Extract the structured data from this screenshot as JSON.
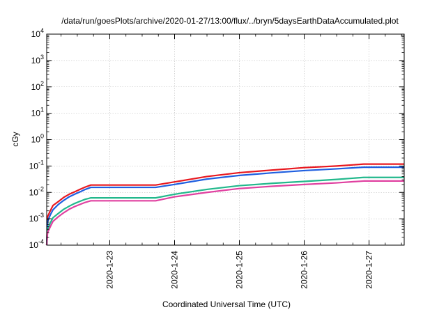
{
  "chart_data": {
    "type": "line",
    "title": "/data/run/goesPlots/archive/2020-01-27/13:00/flux/../bryn/5daysEarthDataAccumulated.plot",
    "xlabel": "Coordinated Universal Time (UTC)",
    "ylabel": "cGy",
    "y_scale": "log",
    "ylim": [
      0.0001,
      10000
    ],
    "xlim": [
      "2020-01-22 00:40",
      "2020-01-27 13:00"
    ],
    "grid": true,
    "x_ticks": [
      "2020-1-23",
      "2020-1-24",
      "2020-1-25",
      "2020-1-26",
      "2020-1-27"
    ],
    "y_ticks": [
      {
        "value": 0.0001,
        "base": "10",
        "exp": "-4"
      },
      {
        "value": 0.001,
        "base": "10",
        "exp": "-3"
      },
      {
        "value": 0.01,
        "base": "10",
        "exp": "-2"
      },
      {
        "value": 0.1,
        "base": "10",
        "exp": "-1"
      },
      {
        "value": 1,
        "base": "10",
        "exp": "0"
      },
      {
        "value": 10,
        "base": "10",
        "exp": "1"
      },
      {
        "value": 100,
        "base": "10",
        "exp": "2"
      },
      {
        "value": 1000,
        "base": "10",
        "exp": "3"
      },
      {
        "value": 10000,
        "base": "10",
        "exp": "4"
      }
    ],
    "series": [
      {
        "color": "#e8181f",
        "points": [
          [
            "2020-01-22 00:40",
            0.0001
          ],
          [
            "2020-01-22 01:00",
            0.0012
          ],
          [
            "2020-01-22 02:00",
            0.002
          ],
          [
            "2020-01-22 03:00",
            0.0032
          ],
          [
            "2020-01-22 05:00",
            0.0045
          ],
          [
            "2020-01-22 07:00",
            0.0065
          ],
          [
            "2020-01-22 09:00",
            0.0085
          ],
          [
            "2020-01-22 11:00",
            0.0105
          ],
          [
            "2020-01-22 13:00",
            0.013
          ],
          [
            "2020-01-22 15:00",
            0.016
          ],
          [
            "2020-01-22 17:00",
            0.019
          ],
          [
            "2020-01-22 20:00",
            0.019
          ],
          [
            "2020-01-23 17:00",
            0.019
          ],
          [
            "2020-01-24 00:00",
            0.025
          ],
          [
            "2020-01-24 12:00",
            0.04
          ],
          [
            "2020-01-25 00:00",
            0.056
          ],
          [
            "2020-01-25 12:00",
            0.07
          ],
          [
            "2020-01-26 00:00",
            0.087
          ],
          [
            "2020-01-26 12:00",
            0.1
          ],
          [
            "2020-01-26 22:00",
            0.118
          ],
          [
            "2020-01-27 13:00",
            0.118
          ]
        ]
      },
      {
        "color": "#1f5fe0",
        "points": [
          [
            "2020-01-22 00:40",
            0.0001
          ],
          [
            "2020-01-22 01:00",
            0.0008
          ],
          [
            "2020-01-22 02:00",
            0.0014
          ],
          [
            "2020-01-22 03:00",
            0.0022
          ],
          [
            "2020-01-22 05:00",
            0.0035
          ],
          [
            "2020-01-22 07:00",
            0.005
          ],
          [
            "2020-01-22 09:00",
            0.0068
          ],
          [
            "2020-01-22 11:00",
            0.0085
          ],
          [
            "2020-01-22 13:00",
            0.0105
          ],
          [
            "2020-01-22 15:00",
            0.013
          ],
          [
            "2020-01-22 17:00",
            0.0155
          ],
          [
            "2020-01-22 20:00",
            0.0155
          ],
          [
            "2020-01-23 17:00",
            0.0155
          ],
          [
            "2020-01-24 00:00",
            0.02
          ],
          [
            "2020-01-24 12:00",
            0.032
          ],
          [
            "2020-01-25 00:00",
            0.044
          ],
          [
            "2020-01-25 12:00",
            0.055
          ],
          [
            "2020-01-26 00:00",
            0.067
          ],
          [
            "2020-01-26 12:00",
            0.078
          ],
          [
            "2020-01-26 22:00",
            0.09
          ],
          [
            "2020-01-27 13:00",
            0.09
          ]
        ]
      },
      {
        "color": "#22b88c",
        "points": [
          [
            "2020-01-22 00:40",
            0.0001
          ],
          [
            "2020-01-22 01:00",
            0.0004
          ],
          [
            "2020-01-22 02:00",
            0.0007
          ],
          [
            "2020-01-22 03:00",
            0.0011
          ],
          [
            "2020-01-22 05:00",
            0.0016
          ],
          [
            "2020-01-22 07:00",
            0.0023
          ],
          [
            "2020-01-22 09:00",
            0.003
          ],
          [
            "2020-01-22 11:00",
            0.0038
          ],
          [
            "2020-01-22 13:00",
            0.0046
          ],
          [
            "2020-01-22 15:00",
            0.0055
          ],
          [
            "2020-01-22 17:00",
            0.0062
          ],
          [
            "2020-01-22 20:00",
            0.0062
          ],
          [
            "2020-01-23 17:00",
            0.0062
          ],
          [
            "2020-01-24 00:00",
            0.0085
          ],
          [
            "2020-01-24 12:00",
            0.013
          ],
          [
            "2020-01-25 00:00",
            0.018
          ],
          [
            "2020-01-25 12:00",
            0.022
          ],
          [
            "2020-01-26 00:00",
            0.026
          ],
          [
            "2020-01-26 12:00",
            0.031
          ],
          [
            "2020-01-26 22:00",
            0.037
          ],
          [
            "2020-01-27 13:00",
            0.037
          ]
        ]
      },
      {
        "color": "#e040a0",
        "points": [
          [
            "2020-01-22 00:40",
            0.0001
          ],
          [
            "2020-01-22 01:00",
            0.0003
          ],
          [
            "2020-01-22 02:00",
            0.0005
          ],
          [
            "2020-01-22 03:00",
            0.0008
          ],
          [
            "2020-01-22 05:00",
            0.0012
          ],
          [
            "2020-01-22 07:00",
            0.0017
          ],
          [
            "2020-01-22 09:00",
            0.0023
          ],
          [
            "2020-01-22 11:00",
            0.0029
          ],
          [
            "2020-01-22 13:00",
            0.0035
          ],
          [
            "2020-01-22 15:00",
            0.0042
          ],
          [
            "2020-01-22 17:00",
            0.0048
          ],
          [
            "2020-01-22 20:00",
            0.0048
          ],
          [
            "2020-01-23 17:00",
            0.0048
          ],
          [
            "2020-01-24 00:00",
            0.0068
          ],
          [
            "2020-01-24 12:00",
            0.01
          ],
          [
            "2020-01-25 00:00",
            0.014
          ],
          [
            "2020-01-25 12:00",
            0.017
          ],
          [
            "2020-01-26 00:00",
            0.02
          ],
          [
            "2020-01-26 12:00",
            0.023
          ],
          [
            "2020-01-26 22:00",
            0.027
          ],
          [
            "2020-01-27 13:00",
            0.027
          ]
        ]
      }
    ]
  }
}
